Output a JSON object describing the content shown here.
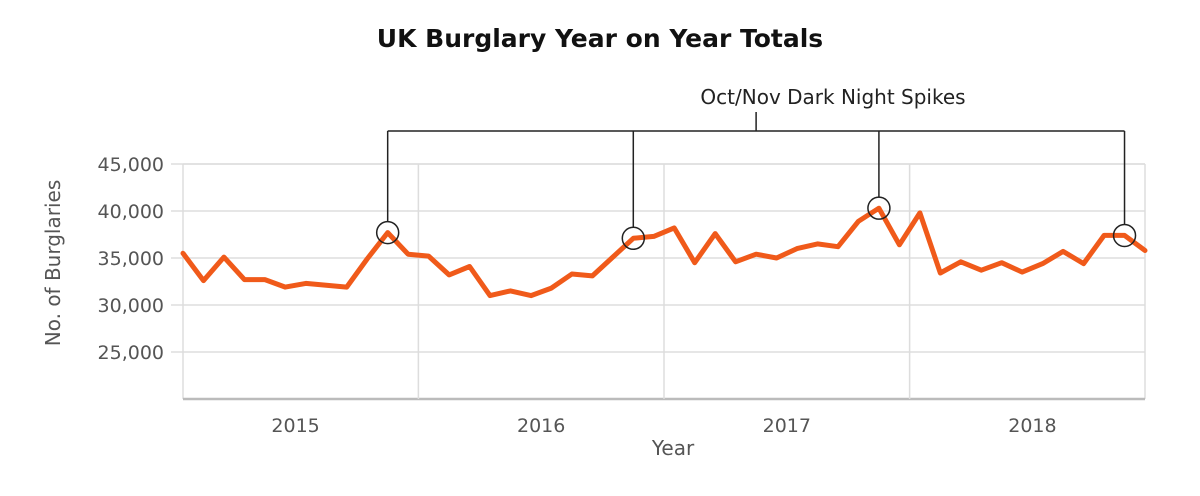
{
  "chart_data": {
    "type": "line",
    "title": "UK Burglary Year on Year Totals",
    "xlabel": "Year",
    "ylabel": "No. of Burglaries",
    "ylim": [
      20000,
      45000
    ],
    "y_ticks": [
      "25,000",
      "30,000",
      "35,000",
      "40,000",
      "45,000"
    ],
    "y_tick_values": [
      25000,
      30000,
      35000,
      40000,
      45000
    ],
    "x_tick_labels": [
      "2015",
      "2016",
      "2017",
      "2018"
    ],
    "grid": true,
    "colors": {
      "line": "#f05a1a",
      "grid": "#dddddd",
      "annotation": "#222222"
    },
    "series": [
      {
        "values": [
          35500,
          32600,
          35100,
          32700,
          32700,
          31900,
          32300,
          32100,
          31900,
          34900,
          37700,
          35400,
          35200,
          33200,
          34100,
          31000,
          31500,
          31000,
          31800,
          33300,
          33100,
          35100,
          37100,
          37300,
          38200,
          34500,
          37600,
          34600,
          35400,
          35000,
          36000,
          36500,
          36200,
          38900,
          40300,
          36400,
          39800,
          33400,
          34600,
          33700,
          34500,
          33500,
          34400,
          35700,
          34400,
          37400,
          37400,
          35800
        ]
      }
    ],
    "annotation": {
      "text": "Oct/Nov Dark Night Spikes",
      "highlight_indices": [
        10,
        22,
        34,
        46
      ]
    }
  }
}
